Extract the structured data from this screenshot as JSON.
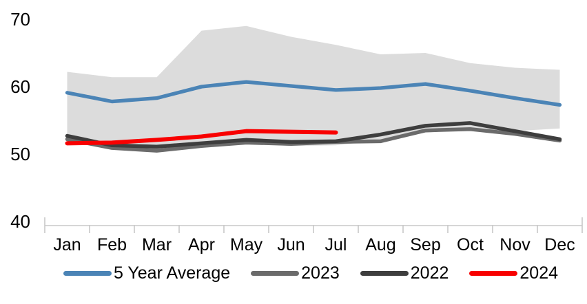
{
  "chart_data": {
    "type": "line",
    "title": "",
    "xlabel": "",
    "ylabel": "",
    "categories": [
      "Jan",
      "Feb",
      "Mar",
      "Apr",
      "May",
      "Jun",
      "Jul",
      "Aug",
      "Sep",
      "Oct",
      "Nov",
      "Dec"
    ],
    "y_ticks": [
      40,
      50,
      60,
      70
    ],
    "ylim": [
      40,
      70
    ],
    "grid": false,
    "legend_position": "bottom",
    "band": {
      "name": "5-year-range",
      "color": "#DCDCDC",
      "top": [
        62.2,
        61.4,
        61.4,
        68.3,
        69.0,
        67.4,
        66.2,
        64.8,
        65.0,
        63.5,
        62.8,
        62.5
      ],
      "bottom": [
        52.9,
        51.3,
        50.5,
        51.3,
        51.6,
        51.2,
        51.3,
        52.0,
        53.2,
        53.6,
        53.4,
        53.8
      ]
    },
    "series": [
      {
        "name": "5 Year Average",
        "color": "#4B84B6",
        "width": 5.3,
        "values": [
          59.1,
          57.8,
          58.3,
          60.0,
          60.7,
          60.1,
          59.5,
          59.8,
          60.4,
          59.4,
          58.3,
          57.3
        ]
      },
      {
        "name": "2023",
        "color": "#6B6B6B",
        "width": 5.5,
        "values": [
          52.2,
          50.9,
          50.5,
          51.2,
          51.7,
          51.5,
          51.8,
          51.9,
          53.5,
          53.7,
          53.0,
          52.0
        ]
      },
      {
        "name": "2022",
        "color": "#3E3E3E",
        "width": 5.5,
        "values": [
          52.7,
          51.3,
          51.1,
          51.6,
          52.1,
          51.8,
          51.9,
          52.9,
          54.2,
          54.6,
          53.4,
          52.2
        ]
      },
      {
        "name": "2024",
        "color": "#F80000",
        "width": 6,
        "values": [
          51.6,
          51.7,
          52.1,
          52.6,
          53.4,
          53.3,
          53.2
        ]
      }
    ],
    "colors": {
      "axis_line": "#C8C8C8",
      "text": "#000000",
      "background": "#FFFFFF"
    }
  }
}
